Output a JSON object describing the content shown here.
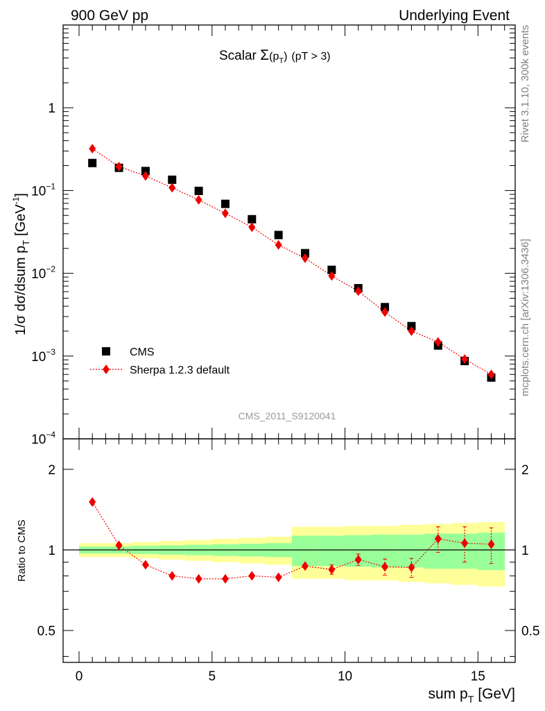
{
  "header": {
    "left": "900 GeV pp",
    "right": "Underlying Event"
  },
  "side_labels": {
    "rivet": "Rivet 3.1.10,  300k events",
    "mcplots": "mcplots.cern.ch [arXiv:1306.3436]"
  },
  "chart_data": [
    {
      "type": "scatter",
      "panel": "main",
      "title_main": "Scalar ",
      "title_sigma": "Σ",
      "title_paren_open": "(p",
      "title_sub": "T",
      "title_paren_close": ")",
      "title_cut": "(pT >  3)",
      "ylabel": "1/σ dσ/dsum p",
      "ylabel_sub": "T",
      "ylabel_unit": "[GeV",
      "ylabel_sup": "-1",
      "ylabel_close": "]",
      "yscale": "log",
      "ylim": [
        0.0001,
        10
      ],
      "xlim": [
        -0.6,
        16.4
      ],
      "yticks": [
        {
          "value": 1,
          "label": "1"
        },
        {
          "value": 0.1,
          "base": "10",
          "exp": "−1"
        },
        {
          "value": 0.01,
          "base": "10",
          "exp": "−2"
        },
        {
          "value": 0.001,
          "base": "10",
          "exp": "−3"
        },
        {
          "value": 0.0001,
          "base": "10",
          "exp": "−4"
        }
      ],
      "watermark": "CMS_2011_S9120041",
      "legend_position": "bottom-left",
      "series": [
        {
          "name": "CMS",
          "marker": "square",
          "color": "#000000",
          "x": [
            0.5,
            1.5,
            2.5,
            3.5,
            4.5,
            5.5,
            6.5,
            7.5,
            8.5,
            9.5,
            10.5,
            11.5,
            12.5,
            13.5,
            14.5,
            15.5
          ],
          "y": [
            0.215,
            0.188,
            0.172,
            0.135,
            0.099,
            0.069,
            0.045,
            0.029,
            0.0175,
            0.011,
            0.0066,
            0.0039,
            0.0023,
            0.00134,
            0.00087,
            0.00055
          ]
        },
        {
          "name": "Sherpa 1.2.3 default",
          "marker": "diamond",
          "line": "dotted",
          "color": "#ee0000",
          "x": [
            0.5,
            1.5,
            2.5,
            3.5,
            4.5,
            5.5,
            6.5,
            7.5,
            8.5,
            9.5,
            10.5,
            11.5,
            12.5,
            13.5,
            14.5,
            15.5
          ],
          "y": [
            0.32,
            0.195,
            0.15,
            0.108,
            0.077,
            0.053,
            0.036,
            0.022,
            0.0152,
            0.0093,
            0.0061,
            0.0034,
            0.002,
            0.00148,
            0.00092,
            0.0006
          ]
        }
      ]
    },
    {
      "type": "scatter",
      "panel": "ratio",
      "ylabel": "Ratio to CMS",
      "yscale": "log",
      "ylim": [
        0.38,
        2.6
      ],
      "xlim": [
        -0.6,
        16.4
      ],
      "xlabel": "sum p",
      "xlabel_sub": "T",
      "xlabel_unit": "[GeV]",
      "xticks": [
        {
          "value": 0,
          "label": "0"
        },
        {
          "value": 5,
          "label": "5"
        },
        {
          "value": 10,
          "label": "10"
        },
        {
          "value": 15,
          "label": "15"
        }
      ],
      "yticks": [
        {
          "value": 2,
          "label": "2"
        },
        {
          "value": 1,
          "label": "1"
        },
        {
          "value": 0.5,
          "label": "0.5"
        }
      ],
      "bands": {
        "edges": [
          0,
          1,
          2,
          3,
          4,
          5,
          6,
          7,
          8,
          9,
          10,
          11,
          12,
          13,
          14,
          15,
          16
        ],
        "yellow_half": [
          0.06,
          0.06,
          0.07,
          0.08,
          0.09,
          0.1,
          0.11,
          0.12,
          0.22,
          0.22,
          0.23,
          0.23,
          0.24,
          0.25,
          0.26,
          0.27
        ],
        "green_half": [
          0.03,
          0.03,
          0.035,
          0.04,
          0.045,
          0.05,
          0.055,
          0.06,
          0.13,
          0.13,
          0.135,
          0.14,
          0.14,
          0.15,
          0.15,
          0.16
        ],
        "yellow_color": "#ffff99",
        "green_color": "#99ff99"
      },
      "series": [
        {
          "name": "Sherpa 1.2.3 default",
          "marker": "diamond",
          "line": "dotted",
          "color": "#ee0000",
          "x": [
            0.5,
            1.5,
            2.5,
            3.5,
            4.5,
            5.5,
            6.5,
            7.5,
            8.5,
            9.5,
            10.5,
            11.5,
            12.5,
            13.5,
            14.5,
            15.5
          ],
          "y": [
            1.51,
            1.04,
            0.88,
            0.8,
            0.78,
            0.78,
            0.8,
            0.79,
            0.87,
            0.845,
            0.92,
            0.865,
            0.86,
            1.1,
            1.06,
            1.05
          ],
          "err": [
            0.02,
            0.02,
            0.02,
            0.02,
            0.02,
            0.02,
            0.02,
            0.02,
            0.03,
            0.035,
            0.045,
            0.06,
            0.07,
            0.12,
            0.16,
            0.16
          ]
        }
      ]
    }
  ]
}
